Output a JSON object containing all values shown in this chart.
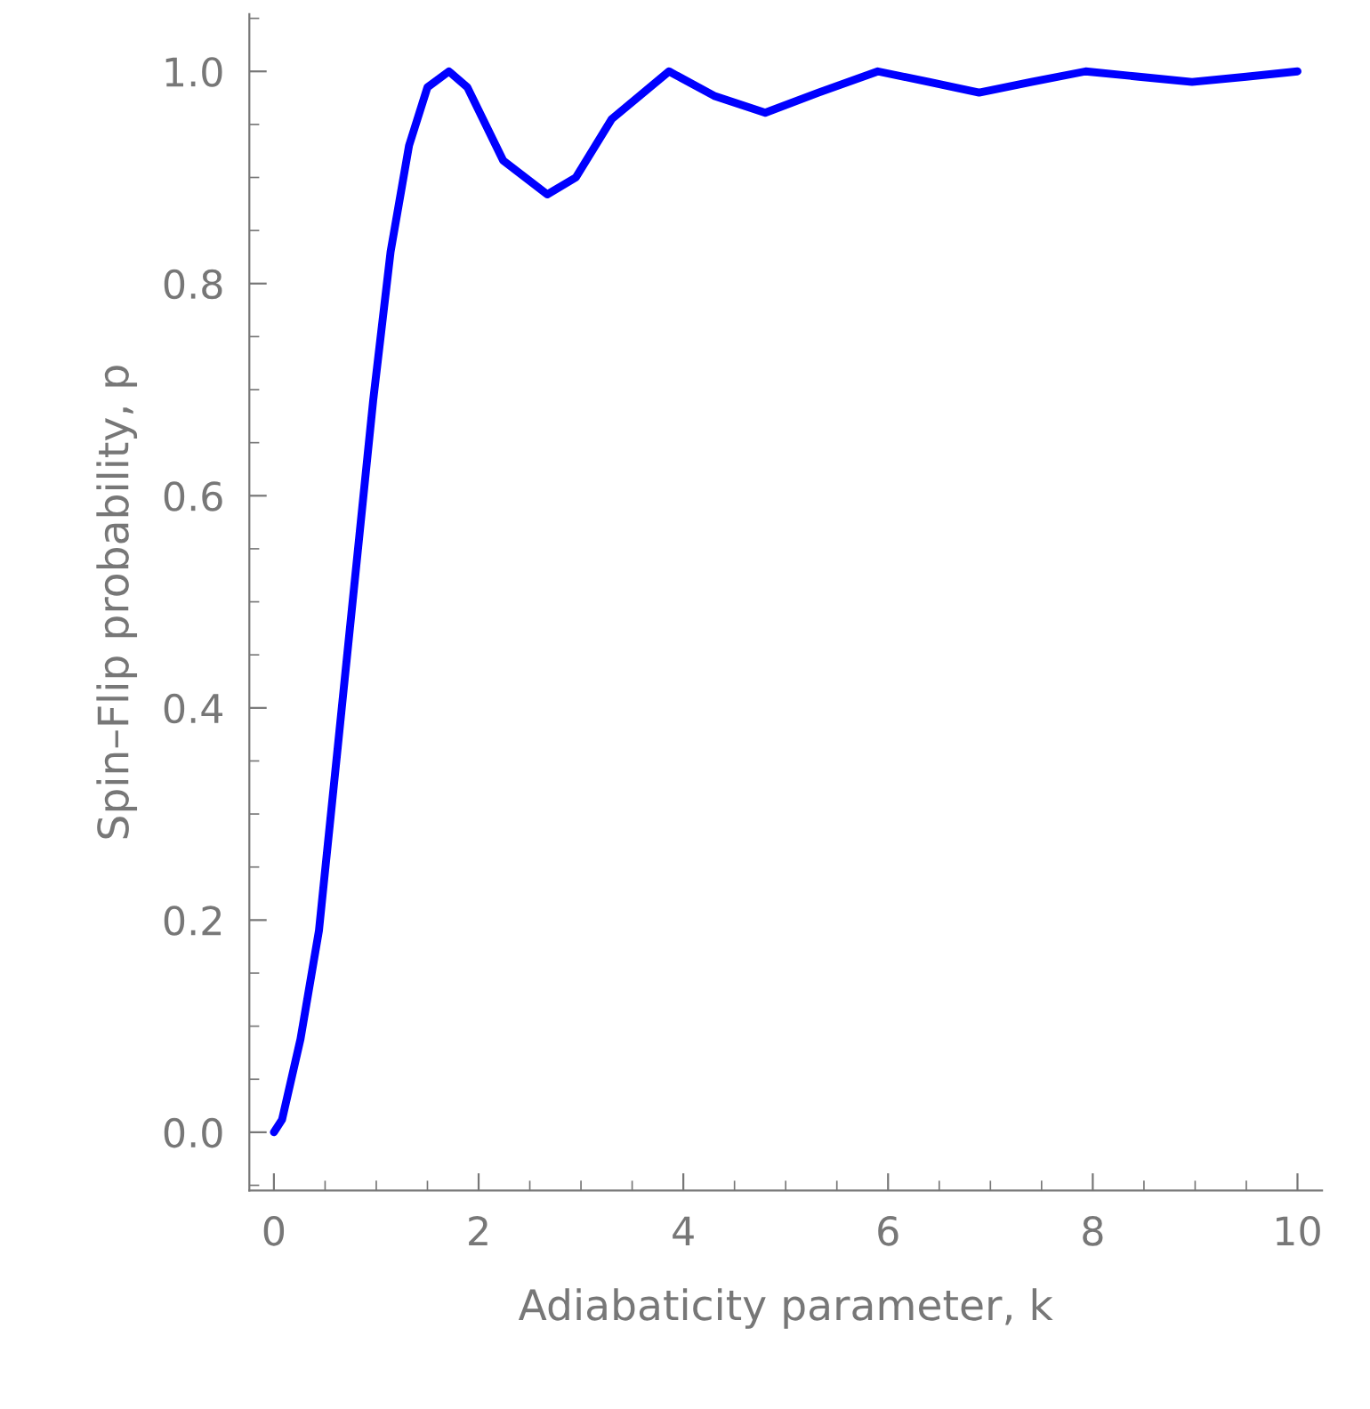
{
  "chart_data": {
    "type": "line",
    "xlabel": "Adiabaticity parameter, k",
    "ylabel": "Spin–Flip probability, p",
    "xlim": [
      -0.24,
      10.24
    ],
    "ylim": [
      -0.055,
      1.054
    ],
    "xticks": [
      0,
      2,
      4,
      6,
      8,
      10
    ],
    "yticks": [
      {
        "value": 0,
        "label": "0.0"
      },
      {
        "value": 0.2,
        "label": "0.2"
      },
      {
        "value": 0.4,
        "label": "0.4"
      },
      {
        "value": 0.6,
        "label": "0.6"
      },
      {
        "value": 0.8,
        "label": "0.8"
      },
      {
        "value": 1.0,
        "label": "1.0"
      }
    ],
    "grid": false,
    "marker": "none",
    "line_style": "solid",
    "series": [
      {
        "color": "#0000ff",
        "x": [
          0,
          0.08,
          0.26,
          0.44,
          0.61,
          0.79,
          0.97,
          1.14,
          1.32,
          1.5,
          1.71,
          1.89,
          2.24,
          2.67,
          2.95,
          3.3,
          3.86,
          4.3,
          4.8,
          5.32,
          5.9,
          6.4,
          6.89,
          7.4,
          7.93,
          8.45,
          8.97,
          9.5,
          10
        ],
        "values": [
          0,
          0.012,
          0.088,
          0.19,
          0.35,
          0.52,
          0.69,
          0.83,
          0.93,
          0.985,
          1.0,
          0.985,
          0.916,
          0.884,
          0.9,
          0.955,
          1.0,
          0.977,
          0.961,
          0.98,
          1.0,
          0.99,
          0.98,
          0.99,
          1.0,
          0.995,
          0.99,
          0.995,
          1.0
        ]
      }
    ]
  }
}
